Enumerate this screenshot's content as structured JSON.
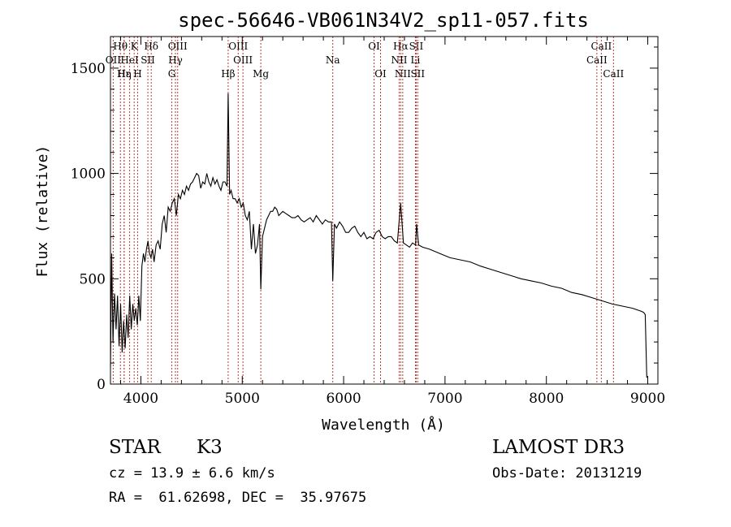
{
  "chart_data": {
    "type": "line",
    "title": "spec-56646-VB061N34V2_sp11-057.fits",
    "xlabel": "Wavelength (Å)",
    "ylabel": "Flux (relative)",
    "xlim": [
      3700,
      9100
    ],
    "ylim": [
      0,
      1650
    ],
    "x_ticks": [
      4000,
      5000,
      6000,
      7000,
      8000,
      9000
    ],
    "x_tick_labels": [
      "4000",
      "5000",
      "6000",
      "7000",
      "8000",
      "9000"
    ],
    "y_ticks": [
      0,
      500,
      1000,
      1500
    ],
    "y_tick_labels": [
      "0",
      "500",
      "1000",
      "1500"
    ],
    "grid": false,
    "line_color": "#000000",
    "marker_color": "#c0392b",
    "series": [
      {
        "name": "flux",
        "x": [
          3700,
          3712,
          3725,
          3740,
          3755,
          3770,
          3785,
          3800,
          3815,
          3830,
          3845,
          3860,
          3875,
          3890,
          3905,
          3920,
          3935,
          3950,
          3965,
          3980,
          3995,
          4010,
          4025,
          4040,
          4055,
          4070,
          4085,
          4100,
          4115,
          4130,
          4150,
          4170,
          4190,
          4210,
          4230,
          4250,
          4270,
          4290,
          4310,
          4330,
          4350,
          4370,
          4390,
          4410,
          4430,
          4450,
          4470,
          4490,
          4510,
          4530,
          4550,
          4570,
          4590,
          4610,
          4630,
          4650,
          4670,
          4690,
          4710,
          4730,
          4750,
          4770,
          4790,
          4810,
          4830,
          4850,
          4861,
          4875,
          4890,
          4910,
          4930,
          4950,
          4970,
          4990,
          5010,
          5030,
          5050,
          5070,
          5090,
          5110,
          5130,
          5150,
          5170,
          5183,
          5200,
          5220,
          5240,
          5260,
          5280,
          5300,
          5320,
          5340,
          5360,
          5380,
          5400,
          5430,
          5460,
          5490,
          5520,
          5550,
          5580,
          5610,
          5640,
          5670,
          5700,
          5730,
          5760,
          5790,
          5820,
          5850,
          5880,
          5893,
          5910,
          5930,
          5960,
          5990,
          6020,
          6050,
          6080,
          6110,
          6140,
          6170,
          6200,
          6230,
          6260,
          6290,
          6320,
          6350,
          6380,
          6410,
          6440,
          6470,
          6500,
          6530,
          6563,
          6590,
          6620,
          6650,
          6680,
          6710,
          6720,
          6740,
          6780,
          6850,
          6950,
          7050,
          7150,
          7250,
          7350,
          7450,
          7550,
          7650,
          7750,
          7850,
          7950,
          8050,
          8150,
          8250,
          8350,
          8450,
          8550,
          8650,
          8750,
          8850,
          8940,
          8960,
          8975,
          8990
        ],
        "y": [
          80,
          620,
          200,
          430,
          260,
          420,
          180,
          380,
          150,
          300,
          170,
          330,
          220,
          420,
          260,
          380,
          300,
          360,
          280,
          420,
          300,
          560,
          620,
          580,
          640,
          680,
          620,
          600,
          640,
          580,
          660,
          680,
          640,
          760,
          800,
          720,
          840,
          820,
          860,
          880,
          800,
          900,
          880,
          920,
          900,
          940,
          920,
          950,
          960,
          980,
          1000,
          990,
          930,
          960,
          950,
          1000,
          960,
          940,
          980,
          950,
          970,
          940,
          920,
          960,
          960,
          940,
          1380,
          900,
          920,
          880,
          880,
          860,
          880,
          840,
          860,
          800,
          780,
          820,
          640,
          760,
          620,
          660,
          760,
          450,
          700,
          740,
          780,
          800,
          820,
          820,
          840,
          830,
          800,
          810,
          820,
          810,
          800,
          790,
          790,
          800,
          780,
          770,
          780,
          790,
          770,
          800,
          780,
          760,
          780,
          770,
          770,
          490,
          760,
          740,
          770,
          750,
          720,
          720,
          740,
          750,
          720,
          700,
          720,
          690,
          700,
          690,
          720,
          730,
          700,
          690,
          700,
          700,
          680,
          670,
          860,
          670,
          660,
          650,
          670,
          660,
          760,
          660,
          650,
          640,
          620,
          600,
          590,
          580,
          560,
          545,
          530,
          515,
          500,
          490,
          480,
          465,
          455,
          435,
          425,
          410,
          395,
          380,
          370,
          360,
          345,
          340,
          330,
          30
        ]
      }
    ],
    "lines_top": [
      {
        "label": "Hθ",
        "x": 3798
      },
      {
        "label": "K",
        "x": 3934
      },
      {
        "label": "Hδ",
        "x": 4102
      },
      {
        "label": "OIII",
        "x": 4363
      },
      {
        "label": "OIII",
        "x": 4960
      },
      {
        "label": "OI",
        "x": 6300
      },
      {
        "label": "Hα",
        "x": 6563
      },
      {
        "label": "SII",
        "x": 6716
      },
      {
        "label": "CaII",
        "x": 8542
      }
    ],
    "lines_mid": [
      {
        "label": "OII",
        "x": 3727
      },
      {
        "label": "HeI",
        "x": 3889
      },
      {
        "label": "SII",
        "x": 4069
      },
      {
        "label": "Hγ",
        "x": 4341
      },
      {
        "label": "OIII",
        "x": 5007
      },
      {
        "label": "Na",
        "x": 5893
      },
      {
        "label": "NII",
        "x": 6548
      },
      {
        "label": "Li",
        "x": 6708
      },
      {
        "label": "CaII",
        "x": 8498
      }
    ],
    "lines_low": [
      {
        "label": "Hε",
        "x": 3835
      },
      {
        "label": "Hη",
        "x": 3835
      },
      {
        "label": "H",
        "x": 3968
      },
      {
        "label": "G",
        "x": 4305
      },
      {
        "label": "Hβ",
        "x": 4861
      },
      {
        "label": "Mg",
        "x": 5183
      },
      {
        "label": "OI",
        "x": 6364
      },
      {
        "label": "NII",
        "x": 6583
      },
      {
        "label": "SII",
        "x": 6731
      },
      {
        "label": "CaII",
        "x": 8662
      }
    ]
  },
  "info": {
    "object_class": "STAR",
    "subclass": "K3",
    "survey": "LAMOST DR3",
    "redshift": "cz = 13.9 ± 6.6 km/s",
    "obs_date": "Obs-Date: 20131219",
    "coords": "RA =  61.62698, DEC =  35.97675"
  }
}
